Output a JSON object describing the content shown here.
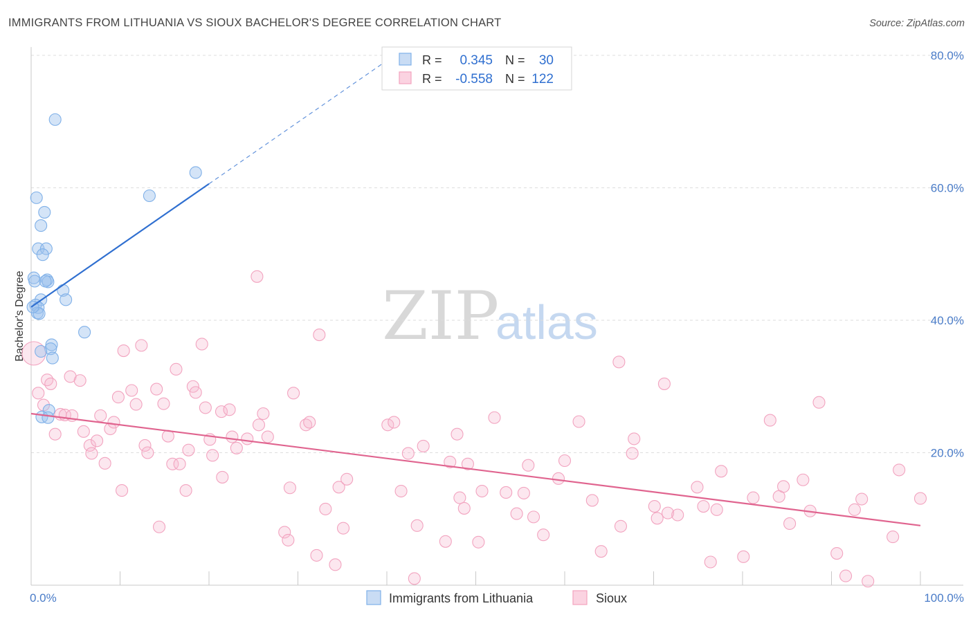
{
  "title": "IMMIGRANTS FROM LITHUANIA VS SIOUX BACHELOR'S DEGREE CORRELATION CHART",
  "source": "Source: ZipAtlas.com",
  "watermark": {
    "zip": "ZIP",
    "atlas": "atlas"
  },
  "legend_top": {
    "r_label": "R =",
    "n_label": "N =",
    "rows": [
      {
        "r": "0.345",
        "n": "30",
        "color": "#7fb0e8"
      },
      {
        "r": "-0.558",
        "n": "122",
        "color": "#f2a3bf"
      }
    ]
  },
  "chart_data": {
    "type": "scatter",
    "title": "IMMIGRANTS FROM LITHUANIA VS SIOUX BACHELOR'S DEGREE CORRELATION CHART",
    "xlabel": "",
    "ylabel": "Bachelor's Degree",
    "xlim": [
      0,
      100
    ],
    "ylim": [
      0,
      80
    ],
    "x_tick_labels": [
      "0.0%",
      "100.0%"
    ],
    "y_ticks": [
      20,
      40,
      60,
      80
    ],
    "y_tick_labels": [
      "20.0%",
      "40.0%",
      "60.0%",
      "80.0%"
    ],
    "grid": "dashed horizontal",
    "legend_position": "bottom-center",
    "series": [
      {
        "name": "Immigrants from Lithuania",
        "color": "#7fb0e8",
        "line_color": "#2f6fd0",
        "trend": {
          "x0": 0,
          "y0": 42.0,
          "x1": 20,
          "y1": 60.6,
          "dash_to_x": 40
        },
        "points": [
          [
            2.7,
            70.3
          ],
          [
            18.5,
            62.3
          ],
          [
            13.3,
            58.8
          ],
          [
            0.6,
            58.5
          ],
          [
            1.5,
            56.3
          ],
          [
            1.1,
            54.3
          ],
          [
            0.8,
            50.8
          ],
          [
            1.7,
            50.8
          ],
          [
            1.3,
            49.9
          ],
          [
            0.3,
            46.4
          ],
          [
            0.4,
            45.9
          ],
          [
            1.8,
            46.1
          ],
          [
            1.9,
            45.8
          ],
          [
            1.6,
            45.9
          ],
          [
            3.6,
            44.5
          ],
          [
            3.9,
            43.1
          ],
          [
            1.1,
            43.1
          ],
          [
            0.5,
            42.3
          ],
          [
            0.8,
            41.9
          ],
          [
            0.7,
            41.1
          ],
          [
            0.9,
            41.0
          ],
          [
            6.0,
            38.2
          ],
          [
            2.3,
            36.3
          ],
          [
            2.2,
            35.7
          ],
          [
            1.1,
            35.3
          ],
          [
            2.4,
            34.3
          ],
          [
            2.0,
            26.4
          ],
          [
            1.2,
            25.4
          ],
          [
            1.9,
            25.3
          ],
          [
            0.2,
            42.0
          ]
        ]
      },
      {
        "name": "Sioux",
        "color": "#f2a3bf",
        "line_color": "#e0648f",
        "trend": {
          "x0": 0,
          "y0": 25.9,
          "x1": 100,
          "y1": 9.0
        },
        "points": [
          [
            0.3,
            35.0
          ],
          [
            0.8,
            29.0
          ],
          [
            1.4,
            27.2
          ],
          [
            1.8,
            31.0
          ],
          [
            2.2,
            30.4
          ],
          [
            2.7,
            22.8
          ],
          [
            3.3,
            25.8
          ],
          [
            3.8,
            25.7
          ],
          [
            4.4,
            31.5
          ],
          [
            4.6,
            25.6
          ],
          [
            5.5,
            30.9
          ],
          [
            5.9,
            23.2
          ],
          [
            6.6,
            21.1
          ],
          [
            6.8,
            19.9
          ],
          [
            7.4,
            21.8
          ],
          [
            7.8,
            25.6
          ],
          [
            8.3,
            18.4
          ],
          [
            8.9,
            23.6
          ],
          [
            9.3,
            24.6
          ],
          [
            9.8,
            28.4
          ],
          [
            10.2,
            14.3
          ],
          [
            10.4,
            35.4
          ],
          [
            11.3,
            29.4
          ],
          [
            11.8,
            27.3
          ],
          [
            12.4,
            36.2
          ],
          [
            12.8,
            21.1
          ],
          [
            13.1,
            20.0
          ],
          [
            14.1,
            29.6
          ],
          [
            14.4,
            8.8
          ],
          [
            14.9,
            27.4
          ],
          [
            15.4,
            22.5
          ],
          [
            15.9,
            18.3
          ],
          [
            16.3,
            32.6
          ],
          [
            16.7,
            18.3
          ],
          [
            17.4,
            14.3
          ],
          [
            17.7,
            20.4
          ],
          [
            18.2,
            30.0
          ],
          [
            18.5,
            29.1
          ],
          [
            19.2,
            36.4
          ],
          [
            19.6,
            26.8
          ],
          [
            20.1,
            22.0
          ],
          [
            20.4,
            19.6
          ],
          [
            21.4,
            26.2
          ],
          [
            21.5,
            16.3
          ],
          [
            22.3,
            26.5
          ],
          [
            22.6,
            22.4
          ],
          [
            23.1,
            20.7
          ],
          [
            24.3,
            22.1
          ],
          [
            25.4,
            46.6
          ],
          [
            25.6,
            24.2
          ],
          [
            26.1,
            25.9
          ],
          [
            26.6,
            22.4
          ],
          [
            28.5,
            8.0
          ],
          [
            28.9,
            6.8
          ],
          [
            29.1,
            14.7
          ],
          [
            29.5,
            29.0
          ],
          [
            30.9,
            24.2
          ],
          [
            31.3,
            24.6
          ],
          [
            32.1,
            4.5
          ],
          [
            32.4,
            37.8
          ],
          [
            33.1,
            11.5
          ],
          [
            34.2,
            3.1
          ],
          [
            34.6,
            14.8
          ],
          [
            35.1,
            8.6
          ],
          [
            35.5,
            16.0
          ],
          [
            40.1,
            24.2
          ],
          [
            40.8,
            24.6
          ],
          [
            41.6,
            14.2
          ],
          [
            42.4,
            19.9
          ],
          [
            43.1,
            1.0
          ],
          [
            43.4,
            9.0
          ],
          [
            44.1,
            21.0
          ],
          [
            46.6,
            6.6
          ],
          [
            47.1,
            18.6
          ],
          [
            47.9,
            22.8
          ],
          [
            48.2,
            13.2
          ],
          [
            48.7,
            11.6
          ],
          [
            49.1,
            18.3
          ],
          [
            50.3,
            6.5
          ],
          [
            50.7,
            14.2
          ],
          [
            52.1,
            25.3
          ],
          [
            53.4,
            14.0
          ],
          [
            54.6,
            10.8
          ],
          [
            55.4,
            13.9
          ],
          [
            55.9,
            18.1
          ],
          [
            56.5,
            10.3
          ],
          [
            57.6,
            7.6
          ],
          [
            59.3,
            16.1
          ],
          [
            60.0,
            18.8
          ],
          [
            61.6,
            24.7
          ],
          [
            63.1,
            12.8
          ],
          [
            64.1,
            5.1
          ],
          [
            66.1,
            33.7
          ],
          [
            66.3,
            8.9
          ],
          [
            67.6,
            19.9
          ],
          [
            67.8,
            22.1
          ],
          [
            70.1,
            11.9
          ],
          [
            70.4,
            10.1
          ],
          [
            71.2,
            30.4
          ],
          [
            71.6,
            10.9
          ],
          [
            72.7,
            10.6
          ],
          [
            74.9,
            14.8
          ],
          [
            75.6,
            11.9
          ],
          [
            76.4,
            3.5
          ],
          [
            77.1,
            11.4
          ],
          [
            77.6,
            17.2
          ],
          [
            80.1,
            4.3
          ],
          [
            81.2,
            13.2
          ],
          [
            83.1,
            24.9
          ],
          [
            84.1,
            13.4
          ],
          [
            84.6,
            14.9
          ],
          [
            85.3,
            9.3
          ],
          [
            86.8,
            15.9
          ],
          [
            87.6,
            11.2
          ],
          [
            88.6,
            27.6
          ],
          [
            90.6,
            4.8
          ],
          [
            91.6,
            1.4
          ],
          [
            92.6,
            11.4
          ],
          [
            93.4,
            13.0
          ],
          [
            94.1,
            0.6
          ],
          [
            96.9,
            7.3
          ],
          [
            97.6,
            17.4
          ],
          [
            100.0,
            13.1
          ]
        ]
      }
    ]
  }
}
